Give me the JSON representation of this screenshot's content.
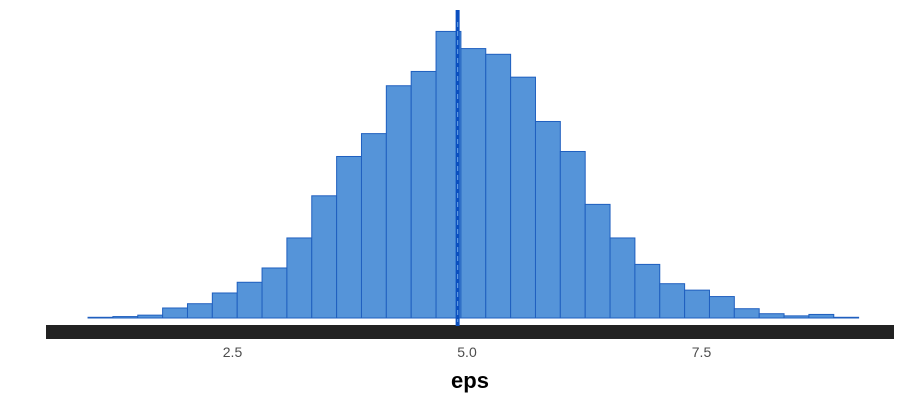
{
  "chart_data": {
    "type": "bar",
    "subtype": "histogram",
    "xlabel": "eps",
    "ylabel": "",
    "title": "",
    "xlim": [
      0.6,
      9.3
    ],
    "x_ticks": [
      {
        "value": 2.5,
        "label": "2.5"
      },
      {
        "value": 5.0,
        "label": "5.0"
      },
      {
        "value": 7.5,
        "label": "7.5"
      }
    ],
    "bin_width": 0.265,
    "bins": [
      {
        "x0": 0.96,
        "count": 1
      },
      {
        "x0": 1.225,
        "count": 2
      },
      {
        "x0": 1.49,
        "count": 4
      },
      {
        "x0": 1.755,
        "count": 14
      },
      {
        "x0": 2.02,
        "count": 20
      },
      {
        "x0": 2.285,
        "count": 35
      },
      {
        "x0": 2.55,
        "count": 50
      },
      {
        "x0": 2.815,
        "count": 70
      },
      {
        "x0": 3.08,
        "count": 112
      },
      {
        "x0": 3.345,
        "count": 171
      },
      {
        "x0": 3.61,
        "count": 226
      },
      {
        "x0": 3.875,
        "count": 258
      },
      {
        "x0": 4.14,
        "count": 325
      },
      {
        "x0": 4.405,
        "count": 345
      },
      {
        "x0": 4.67,
        "count": 401
      },
      {
        "x0": 4.935,
        "count": 377
      },
      {
        "x0": 5.2,
        "count": 369
      },
      {
        "x0": 5.465,
        "count": 337
      },
      {
        "x0": 5.73,
        "count": 275
      },
      {
        "x0": 5.995,
        "count": 233
      },
      {
        "x0": 6.26,
        "count": 159
      },
      {
        "x0": 6.525,
        "count": 112
      },
      {
        "x0": 6.79,
        "count": 75
      },
      {
        "x0": 7.055,
        "count": 48
      },
      {
        "x0": 7.32,
        "count": 39
      },
      {
        "x0": 7.585,
        "count": 30
      },
      {
        "x0": 7.85,
        "count": 13
      },
      {
        "x0": 8.115,
        "count": 6
      },
      {
        "x0": 8.38,
        "count": 3
      },
      {
        "x0": 8.645,
        "count": 5
      },
      {
        "x0": 8.91,
        "count": 1
      }
    ],
    "ylim": [
      0,
      410
    ],
    "reference_line": {
      "value": 4.9,
      "style": "solid-with-dashed-overlay"
    },
    "grid": false,
    "legend": "none",
    "colors": {
      "bar_fill": "#5594d9",
      "bar_stroke": "#1f5fbf",
      "baseline_line": "#1f5fbf",
      "reference_line": "#0b4fbf",
      "axis_bar": "#222222",
      "tick_label": "#4d4d4d",
      "axis_title": "#000000"
    }
  }
}
